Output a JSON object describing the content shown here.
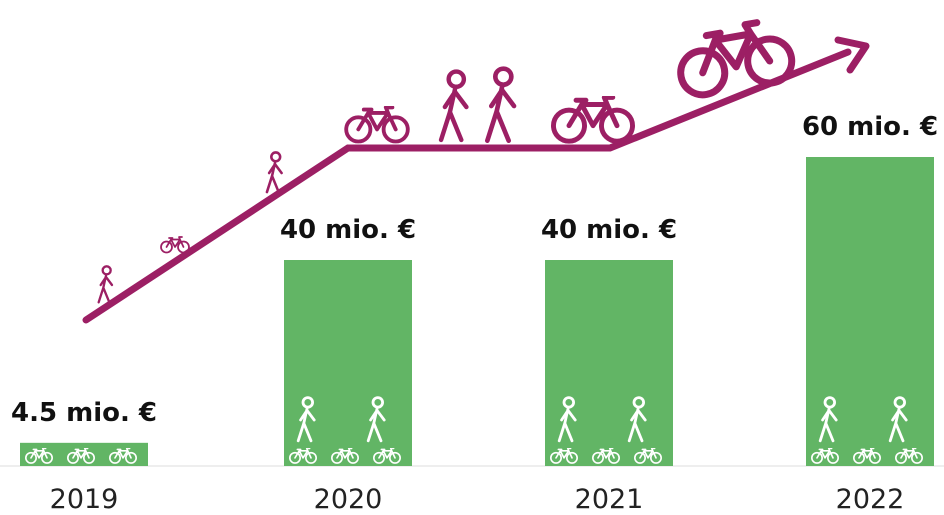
{
  "chart_data": {
    "type": "bar",
    "categories": [
      "2019",
      "2020",
      "2021",
      "2022"
    ],
    "values": [
      4.5,
      40,
      40,
      60
    ],
    "value_labels": [
      "4.5 mio. €",
      "40 mio. €",
      "40 mio. €",
      "60 mio. €"
    ],
    "color": "#62b565"
  }
}
